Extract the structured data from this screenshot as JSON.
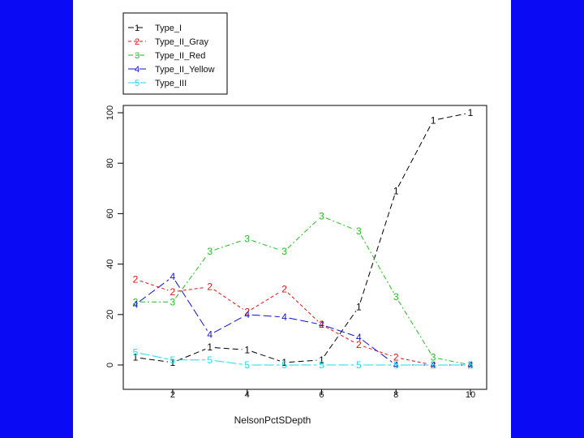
{
  "chart_data": {
    "type": "line",
    "xlabel": "NelsonPctSDepth",
    "ylabel": "",
    "x": [
      1,
      2,
      3,
      4,
      5,
      6,
      7,
      8,
      9,
      10
    ],
    "xlim": [
      1,
      10
    ],
    "ylim": [
      0,
      100
    ],
    "x_ticks": [
      2,
      4,
      6,
      8,
      10
    ],
    "y_ticks": [
      0,
      20,
      40,
      60,
      80,
      100
    ],
    "legend_position": "top-left",
    "grid": false,
    "series": [
      {
        "name": "Type_I",
        "symbol": "1",
        "color": "#000000",
        "dash": "7,4",
        "values": [
          3,
          1,
          7,
          6,
          1,
          2,
          23,
          69,
          97,
          100
        ]
      },
      {
        "name": "Type_II_Gray",
        "symbol": "2",
        "color": "#dd1111",
        "dash": "4,3",
        "values": [
          34,
          29,
          31,
          21,
          30,
          16,
          8,
          3,
          0,
          0
        ]
      },
      {
        "name": "Type_II_Red",
        "symbol": "3",
        "color": "#22bb22",
        "dash": "6,3,2,3",
        "values": [
          25,
          25,
          45,
          50,
          45,
          59,
          53,
          27,
          3,
          0
        ]
      },
      {
        "name": "Type_II_Yellow",
        "symbol": "4",
        "color": "#1111cc",
        "dash": "10,4",
        "values": [
          24,
          35,
          12,
          20,
          19,
          16,
          11,
          0,
          0,
          0
        ]
      },
      {
        "name": "Type_III",
        "symbol": "5",
        "color": "#22d8e8",
        "dash": "12,3",
        "values": [
          5,
          2,
          2,
          0,
          0,
          0,
          0,
          0,
          0,
          0
        ]
      }
    ]
  }
}
